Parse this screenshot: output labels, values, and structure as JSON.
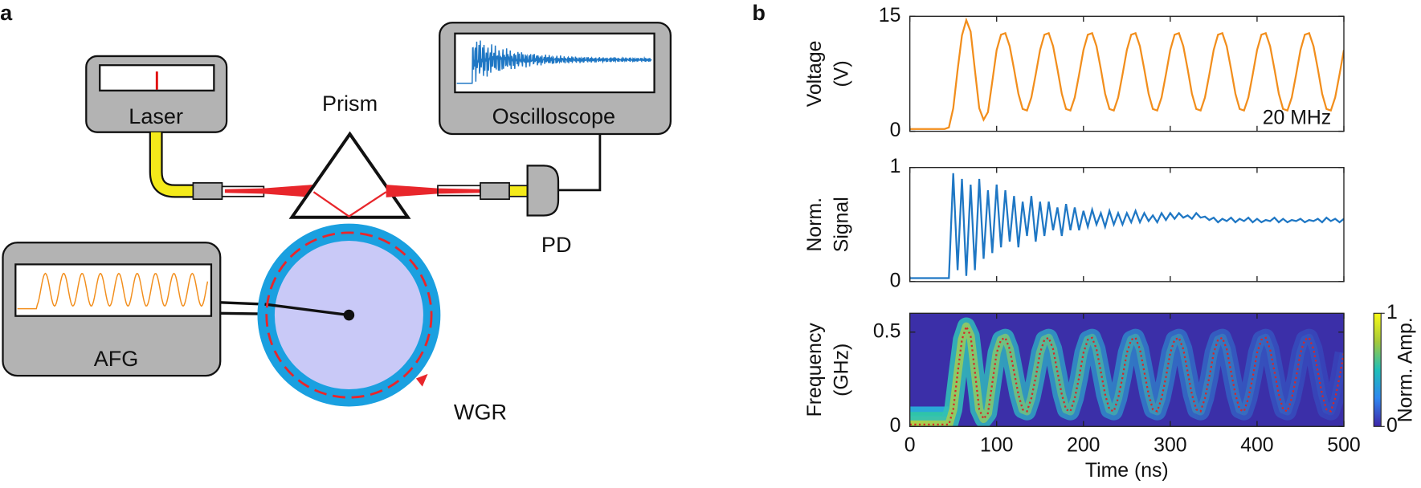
{
  "panels": [
    "a",
    "b"
  ],
  "diagram": {
    "laser": "Laser",
    "prism": "Prism",
    "oscilloscope": "Oscilloscope",
    "pd": "PD",
    "afg": "AFG",
    "wgr": "WGR"
  },
  "chart_data": [
    {
      "type": "line",
      "ylabel": [
        "Voltage",
        "(V)"
      ],
      "annotation": "20 MHz",
      "color": "#f28e1c",
      "xlim": [
        0,
        500
      ],
      "xticks": [
        0,
        100,
        200,
        300,
        400,
        500
      ],
      "xtick_labels": false,
      "ylim": [
        0,
        15
      ],
      "yticks": [
        0,
        15
      ],
      "x": [
        0,
        5,
        10,
        15,
        20,
        25,
        30,
        35,
        40,
        45,
        50,
        55,
        60,
        65,
        70,
        75,
        80,
        85,
        90,
        95,
        100,
        105,
        110,
        115,
        120,
        125,
        130,
        135,
        140,
        145,
        150,
        155,
        160,
        165,
        170,
        175,
        180,
        185,
        190,
        195,
        200,
        205,
        210,
        215,
        220,
        225,
        230,
        235,
        240,
        245,
        250,
        255,
        260,
        265,
        270,
        275,
        280,
        285,
        290,
        295,
        300,
        305,
        310,
        315,
        320,
        325,
        330,
        335,
        340,
        345,
        350,
        355,
        360,
        365,
        370,
        375,
        380,
        385,
        390,
        395,
        400,
        405,
        410,
        415,
        420,
        425,
        430,
        435,
        440,
        445,
        450,
        455,
        460,
        465,
        470,
        475,
        480,
        485,
        490,
        495,
        500
      ],
      "values": [
        0.3,
        0.3,
        0.3,
        0.3,
        0.3,
        0.3,
        0.3,
        0.3,
        0.3,
        0.5,
        3,
        8,
        12.5,
        14.5,
        13,
        8,
        3,
        1.5,
        2.5,
        6.5,
        10.6,
        12.6,
        12.8,
        11.1,
        8.1,
        4.9,
        2.9,
        2.7,
        4.4,
        7.4,
        10.6,
        12.6,
        12.8,
        11.1,
        8.1,
        4.9,
        2.9,
        2.7,
        4.4,
        7.4,
        10.6,
        12.6,
        12.8,
        11.1,
        8.1,
        4.9,
        2.9,
        2.7,
        4.4,
        7.4,
        10.6,
        12.6,
        12.8,
        11.1,
        8.1,
        4.9,
        2.9,
        2.7,
        4.4,
        7.4,
        10.6,
        12.6,
        12.8,
        11.1,
        8.1,
        4.9,
        2.9,
        2.7,
        4.4,
        7.4,
        10.6,
        12.6,
        12.8,
        11.1,
        8.1,
        4.9,
        2.9,
        2.7,
        4.4,
        7.4,
        10.6,
        12.6,
        12.8,
        11.1,
        8.1,
        4.9,
        2.9,
        2.7,
        4.4,
        7.4,
        10.6,
        12.6,
        12.8,
        11.1,
        8.1,
        4.9,
        2.9,
        2.7,
        4.4,
        7.4,
        10.6
      ]
    },
    {
      "type": "line",
      "ylabel": [
        "Norm.",
        "Signal"
      ],
      "color": "#1f77c4",
      "xlim": [
        0,
        500
      ],
      "xticks": [
        0,
        100,
        200,
        300,
        400,
        500
      ],
      "xtick_labels": false,
      "ylim": [
        0,
        1
      ],
      "yticks": [
        0,
        1
      ],
      "x": [
        0,
        5,
        10,
        15,
        20,
        25,
        30,
        35,
        40,
        45,
        50,
        55,
        60,
        65,
        70,
        75,
        80,
        85,
        90,
        95,
        100,
        105,
        110,
        115,
        120,
        125,
        130,
        135,
        140,
        145,
        150,
        155,
        160,
        165,
        170,
        175,
        180,
        185,
        190,
        195,
        200,
        205,
        210,
        215,
        220,
        225,
        230,
        235,
        240,
        245,
        250,
        255,
        260,
        265,
        270,
        275,
        280,
        285,
        290,
        295,
        300,
        305,
        310,
        315,
        320,
        325,
        330,
        335,
        340,
        345,
        350,
        355,
        360,
        365,
        370,
        375,
        380,
        385,
        390,
        395,
        400,
        405,
        410,
        415,
        420,
        425,
        430,
        435,
        440,
        445,
        450,
        455,
        460,
        465,
        470,
        475,
        480,
        485,
        490,
        495,
        500
      ],
      "values": [
        0.03,
        0.03,
        0.03,
        0.03,
        0.03,
        0.03,
        0.03,
        0.03,
        0.03,
        0.03,
        0.95,
        0.1,
        0.9,
        0.05,
        0.85,
        0.1,
        0.9,
        0.2,
        0.8,
        0.25,
        0.85,
        0.3,
        0.8,
        0.35,
        0.75,
        0.3,
        0.7,
        0.4,
        0.75,
        0.35,
        0.7,
        0.4,
        0.7,
        0.45,
        0.65,
        0.4,
        0.68,
        0.45,
        0.65,
        0.45,
        0.62,
        0.48,
        0.63,
        0.5,
        0.6,
        0.48,
        0.62,
        0.5,
        0.6,
        0.5,
        0.6,
        0.52,
        0.62,
        0.52,
        0.6,
        0.53,
        0.58,
        0.52,
        0.6,
        0.54,
        0.6,
        0.55,
        0.6,
        0.56,
        0.58,
        0.55,
        0.6,
        0.56,
        0.57,
        0.54,
        0.56,
        0.52,
        0.55,
        0.53,
        0.56,
        0.52,
        0.55,
        0.53,
        0.56,
        0.52,
        0.55,
        0.52,
        0.54,
        0.53,
        0.56,
        0.52,
        0.55,
        0.52,
        0.54,
        0.53,
        0.55,
        0.52,
        0.54,
        0.53,
        0.55,
        0.52,
        0.56,
        0.53,
        0.55,
        0.52,
        0.55
      ]
    },
    {
      "type": "spectrogram",
      "ylabel": [
        "Frequency",
        "(GHz)"
      ],
      "xlabel": "Time (ns)",
      "color": "#d62728",
      "background": "#3b2fa8",
      "xlim": [
        0,
        500
      ],
      "xticks": [
        0,
        100,
        200,
        300,
        400,
        500
      ],
      "xtick_labels": true,
      "ylim": [
        0,
        0.6
      ],
      "yticks": [
        0,
        0.5
      ],
      "colorbar": {
        "label": "Norm. Amp.",
        "ticks": [
          0,
          1
        ],
        "colors": [
          "#3e26a8",
          "#2e87f0",
          "#1fbfb8",
          "#a5c93a",
          "#f9fb14"
        ]
      },
      "x": [
        0,
        5,
        10,
        15,
        20,
        25,
        30,
        35,
        40,
        45,
        50,
        55,
        60,
        65,
        70,
        75,
        80,
        85,
        90,
        95,
        100,
        105,
        110,
        115,
        120,
        125,
        130,
        135,
        140,
        145,
        150,
        155,
        160,
        165,
        170,
        175,
        180,
        185,
        190,
        195,
        200,
        205,
        210,
        215,
        220,
        225,
        230,
        235,
        240,
        245,
        250,
        255,
        260,
        265,
        270,
        275,
        280,
        285,
        290,
        295,
        300,
        305,
        310,
        315,
        320,
        325,
        330,
        335,
        340,
        345,
        350,
        355,
        360,
        365,
        370,
        375,
        380,
        385,
        390,
        395,
        400,
        405,
        410,
        415,
        420,
        425,
        430,
        435,
        440,
        445,
        450,
        455,
        460,
        465,
        470,
        475,
        480,
        485,
        490,
        495,
        500
      ],
      "values": [
        0.01,
        0.01,
        0.01,
        0.01,
        0.01,
        0.01,
        0.01,
        0.01,
        0.01,
        0.01,
        0.09,
        0.28,
        0.46,
        0.53,
        0.48,
        0.29,
        0.09,
        0.04,
        0.07,
        0.23,
        0.39,
        0.46,
        0.47,
        0.41,
        0.29,
        0.17,
        0.09,
        0.08,
        0.15,
        0.26,
        0.39,
        0.46,
        0.47,
        0.41,
        0.29,
        0.17,
        0.09,
        0.08,
        0.15,
        0.26,
        0.39,
        0.46,
        0.47,
        0.41,
        0.29,
        0.17,
        0.09,
        0.08,
        0.15,
        0.26,
        0.39,
        0.46,
        0.47,
        0.41,
        0.29,
        0.17,
        0.09,
        0.08,
        0.15,
        0.26,
        0.39,
        0.46,
        0.47,
        0.41,
        0.29,
        0.17,
        0.09,
        0.08,
        0.15,
        0.26,
        0.39,
        0.46,
        0.47,
        0.41,
        0.29,
        0.17,
        0.09,
        0.08,
        0.15,
        0.26,
        0.39,
        0.46,
        0.47,
        0.41,
        0.29,
        0.17,
        0.09,
        0.08,
        0.15,
        0.26,
        0.39,
        0.46,
        0.47,
        0.41,
        0.29,
        0.17,
        0.09,
        0.08,
        0.15,
        0.26,
        0.39
      ]
    }
  ]
}
